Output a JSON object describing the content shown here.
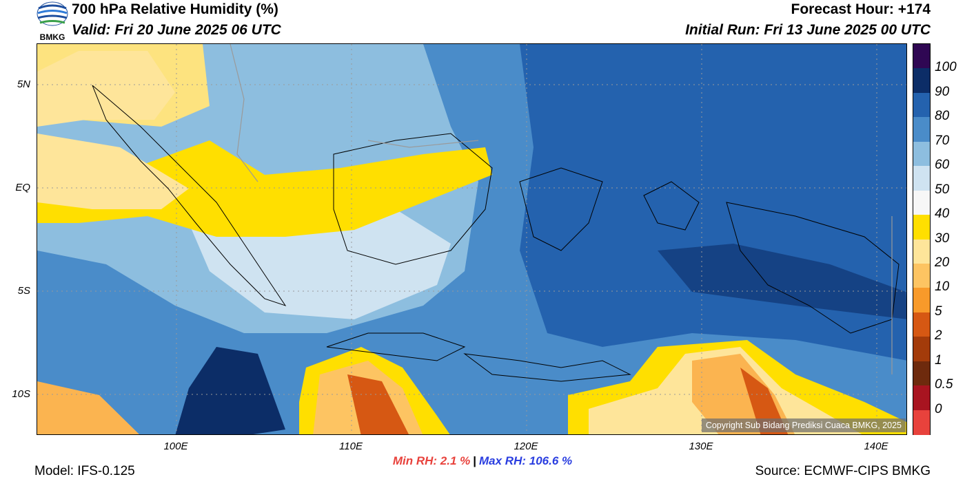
{
  "header": {
    "title": "700 hPa Relative Humidity (%)",
    "valid": "Valid: Fri 20 June 2025 06 UTC",
    "forecast_hour": "Forecast Hour: +174",
    "initial_run": "Initial Run: Fri 13 June 2025 00 UTC",
    "logo_text": "BMKG"
  },
  "map": {
    "lat_labels": [
      "5N",
      "EQ",
      "5S",
      "10S"
    ],
    "lon_labels": [
      "100E",
      "110E",
      "120E",
      "130E",
      "140E"
    ],
    "copyright": "Copyright Sub Bidang Prediksi Cuaca BMKG, 2025",
    "field": [
      {
        "name": "dry-north-band",
        "level": "30-40",
        "color": "#fde37f"
      },
      {
        "name": "moist-east",
        "level": "80-90",
        "color": "#2e6cb7"
      },
      {
        "name": "dry-south-center",
        "level": "5-10",
        "color": "#d4531a"
      },
      {
        "name": "dry-south-east",
        "level": "10-20",
        "color": "#fbb450"
      }
    ]
  },
  "colorbar": {
    "segments": [
      {
        "label": "100",
        "color": "#2f0753"
      },
      {
        "label": "90",
        "color": "#0c2d67"
      },
      {
        "label": "80",
        "color": "#2462ae"
      },
      {
        "label": "70",
        "color": "#4a8cc9"
      },
      {
        "label": "60",
        "color": "#8dbedf"
      },
      {
        "label": "50",
        "color": "#cfe3f1"
      },
      {
        "label": "40",
        "color": "#f7f7f7"
      },
      {
        "label": "30",
        "color": "#ffdf00"
      },
      {
        "label": "20",
        "color": "#fee59a"
      },
      {
        "label": "10",
        "color": "#fdc462"
      },
      {
        "label": "5",
        "color": "#f89a2a"
      },
      {
        "label": "2",
        "color": "#d65813"
      },
      {
        "label": "1",
        "color": "#a33b0a"
      },
      {
        "label": "0.5",
        "color": "#6e2a0d"
      },
      {
        "label": "0",
        "color": "#a81420"
      },
      {
        "label": "",
        "color": "#e8423c"
      }
    ]
  },
  "stats": {
    "min_label": "Min RH:   2.1 %",
    "separator": "|",
    "max_label": "Max RH: 106.6 %"
  },
  "footer": {
    "model": "Model: IFS-0.125",
    "source": "Source: ECMWF-CIPS BMKG"
  }
}
